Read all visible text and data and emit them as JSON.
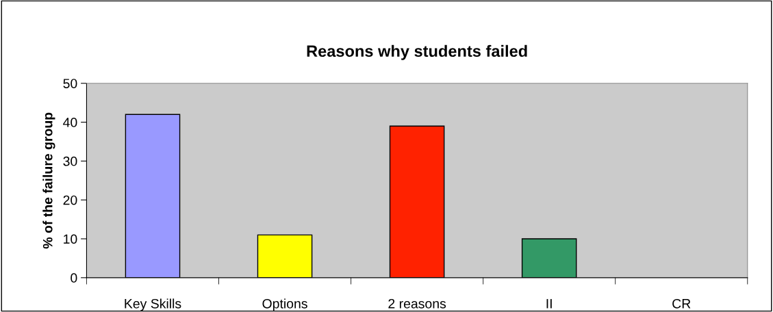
{
  "chart_data": {
    "type": "bar",
    "title": "Reasons why students failed",
    "ylabel": "% of the failure group",
    "categories": [
      "Key Skills",
      "Options",
      "2 reasons",
      "II",
      "CR"
    ],
    "values": [
      42,
      11,
      39,
      10,
      0
    ],
    "colors": [
      "#9999ff",
      "#ffff00",
      "#ff2200",
      "#339966",
      null
    ],
    "ylim": [
      0,
      50
    ],
    "yticks": [
      0,
      10,
      20,
      30,
      40,
      50
    ],
    "grid": false,
    "legend": false
  }
}
